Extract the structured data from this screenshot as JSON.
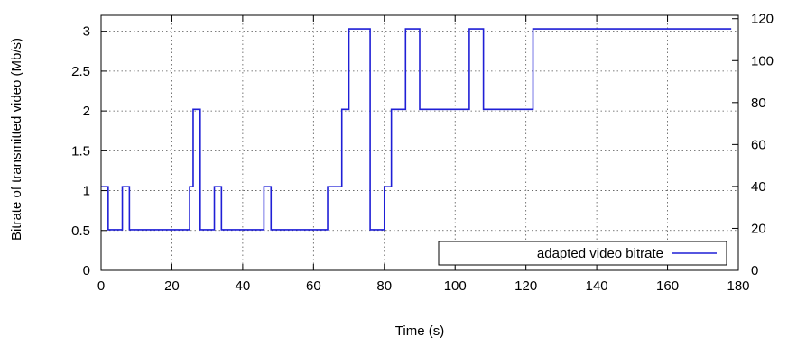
{
  "chart_data": {
    "type": "line",
    "step": true,
    "xlabel": "Time (s)",
    "ylabel": "Bitrate of transmitted video (Mb/s)",
    "xlim": [
      0,
      180
    ],
    "ylim": [
      0,
      3.2
    ],
    "y2lim": [
      0,
      121.6
    ],
    "x_ticks": [
      0,
      20,
      40,
      60,
      80,
      100,
      120,
      140,
      160,
      180
    ],
    "y_ticks": [
      0,
      0.5,
      1,
      1.5,
      2,
      2.5,
      3
    ],
    "y_tick_labels": [
      "0",
      "0.5",
      "1",
      "1.5",
      "2",
      "2.5",
      "3"
    ],
    "y2_ticks": [
      0,
      20,
      40,
      60,
      80,
      100,
      120
    ],
    "grid": true,
    "legend_position": "bottom-right",
    "series": [
      {
        "name": "adapted video bitrate",
        "color": "#1f1fd6",
        "x": [
          0,
          2,
          6,
          8,
          25,
          26,
          28,
          32,
          34,
          46,
          48,
          64,
          68,
          70,
          76,
          80,
          82,
          86,
          90,
          104,
          108,
          122,
          178
        ],
        "y": [
          1.05,
          0.51,
          1.05,
          0.51,
          1.05,
          2.02,
          0.51,
          1.05,
          0.51,
          1.05,
          0.51,
          1.05,
          2.02,
          3.03,
          0.51,
          1.05,
          2.02,
          3.03,
          2.02,
          3.03,
          2.02,
          3.03,
          3.03
        ]
      }
    ]
  }
}
